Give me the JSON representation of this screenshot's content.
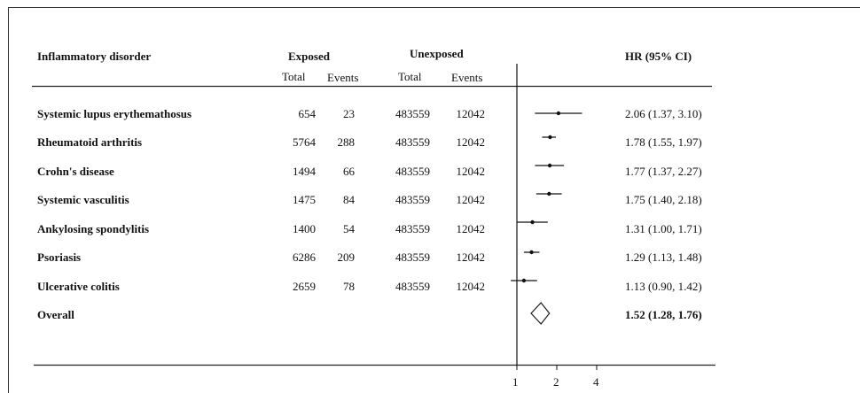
{
  "headers": {
    "disorder": "Inflammatory disorder",
    "exposed": "Exposed",
    "unexposed": "Unexposed",
    "total": "Total",
    "events": "Events",
    "hr": "HR (95% CI)"
  },
  "rows": [
    {
      "name": "Systemic lupus erythemathosus",
      "exp_total": "654",
      "exp_events": "23",
      "unexp_total": "483559",
      "unexp_events": "12042",
      "hr_text": "2.06 (1.37, 3.10)"
    },
    {
      "name": "Rheumatoid arthritis",
      "exp_total": "5764",
      "exp_events": "288",
      "unexp_total": "483559",
      "unexp_events": "12042",
      "hr_text": "1.78 (1.55, 1.97)"
    },
    {
      "name": "Crohn's disease",
      "exp_total": "1494",
      "exp_events": "66",
      "unexp_total": "483559",
      "unexp_events": "12042",
      "hr_text": "1.77 (1.37, 2.27)"
    },
    {
      "name": "Systemic vasculitis",
      "exp_total": "1475",
      "exp_events": "84",
      "unexp_total": "483559",
      "unexp_events": "12042",
      "hr_text": "1.75 (1.40, 2.18)"
    },
    {
      "name": "Ankylosing spondylitis",
      "exp_total": "1400",
      "exp_events": "54",
      "unexp_total": "483559",
      "unexp_events": "12042",
      "hr_text": "1.31 (1.00, 1.71)"
    },
    {
      "name": "Psoriasis",
      "exp_total": "6286",
      "exp_events": "209",
      "unexp_total": "483559",
      "unexp_events": "12042",
      "hr_text": "1.29 (1.13, 1.48)"
    },
    {
      "name": "Ulcerative colitis",
      "exp_total": "2659",
      "exp_events": "78",
      "unexp_total": "483559",
      "unexp_events": "12042",
      "hr_text": "1.13 (0.90, 1.42)"
    }
  ],
  "overall": {
    "name": "Overall",
    "hr_text": "1.52 (1.28, 1.76)"
  },
  "chart_data": {
    "type": "forest",
    "x_scale": "log",
    "x_ticks": [
      1,
      2,
      4
    ],
    "reference_line": 1,
    "series": [
      {
        "label": "Systemic lupus erythemathosus",
        "hr": 2.06,
        "lo": 1.37,
        "hi": 3.1
      },
      {
        "label": "Rheumatoid arthritis",
        "hr": 1.78,
        "lo": 1.55,
        "hi": 1.97
      },
      {
        "label": "Crohn's disease",
        "hr": 1.77,
        "lo": 1.37,
        "hi": 2.27
      },
      {
        "label": "Systemic vasculitis",
        "hr": 1.75,
        "lo": 1.4,
        "hi": 2.18
      },
      {
        "label": "Ankylosing spondylitis",
        "hr": 1.31,
        "lo": 1.0,
        "hi": 1.71
      },
      {
        "label": "Psoriasis",
        "hr": 1.29,
        "lo": 1.13,
        "hi": 1.48
      },
      {
        "label": "Ulcerative colitis",
        "hr": 1.13,
        "lo": 0.9,
        "hi": 1.42
      }
    ],
    "overall": {
      "label": "Overall",
      "hr": 1.52,
      "lo": 1.28,
      "hi": 1.76
    }
  }
}
